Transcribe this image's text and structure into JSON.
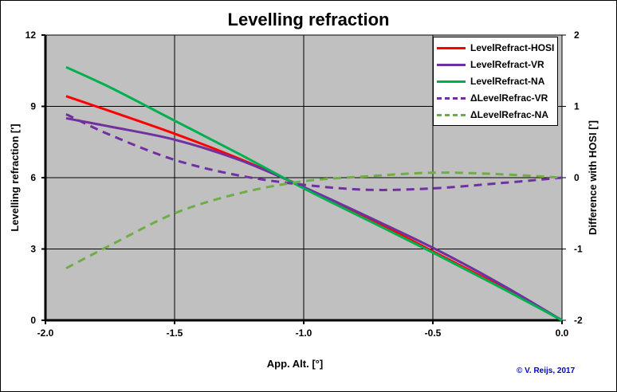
{
  "chart_data": {
    "type": "line",
    "title": "Levelling refraction",
    "xlabel": "App. Alt. [°]",
    "ylabel": "Levelling refraction [']",
    "y2label": "Difference with HOSI [']",
    "xlim": [
      -2.0,
      0.0
    ],
    "ylim": [
      0,
      12
    ],
    "y2lim": [
      -2,
      2
    ],
    "xticks": [
      "-2.0",
      "-1.5",
      "-1.0",
      "-0.5",
      "0.0"
    ],
    "yticks": [
      "0",
      "3",
      "6",
      "9",
      "12"
    ],
    "y2ticks": [
      "-2",
      "-1",
      "0",
      "1",
      "2"
    ],
    "grid": true,
    "legend_position": "top-right",
    "x": [
      -1.92,
      -1.75,
      -1.5,
      -1.25,
      -1.0,
      -0.75,
      -0.5,
      -0.25,
      0.0
    ],
    "series": [
      {
        "name": "LevelRefract-HOSI",
        "axis": "left",
        "style": "solid",
        "color": "#ff0000",
        "values": [
          9.43,
          8.8,
          7.85,
          6.8,
          5.6,
          4.3,
          2.9,
          1.5,
          0
        ]
      },
      {
        "name": "LevelRefract-VR",
        "axis": "left",
        "style": "solid",
        "color": "#7030a0",
        "values": [
          8.5,
          8.15,
          7.6,
          6.75,
          5.6,
          4.35,
          3.05,
          1.6,
          0
        ]
      },
      {
        "name": "LevelRefract-NA",
        "axis": "left",
        "style": "solid",
        "color": "#00b050",
        "values": [
          10.65,
          9.8,
          8.4,
          7.0,
          5.55,
          4.2,
          2.85,
          1.45,
          0
        ]
      },
      {
        "name": "ΔLevelRefrac-VR",
        "axis": "right",
        "style": "dashed",
        "color": "#7030a0",
        "values": [
          0.89,
          0.6,
          0.25,
          0.03,
          -0.1,
          -0.17,
          -0.15,
          -0.08,
          0
        ]
      },
      {
        "name": "ΔLevelRefrac-NA",
        "axis": "right",
        "style": "dashed",
        "color": "#70ad47",
        "values": [
          -1.27,
          -0.95,
          -0.5,
          -0.22,
          -0.05,
          0.02,
          0.07,
          0.05,
          0
        ]
      }
    ],
    "plot_background": "#c0c0c0"
  },
  "credit": "© V. Reijs, 2017"
}
